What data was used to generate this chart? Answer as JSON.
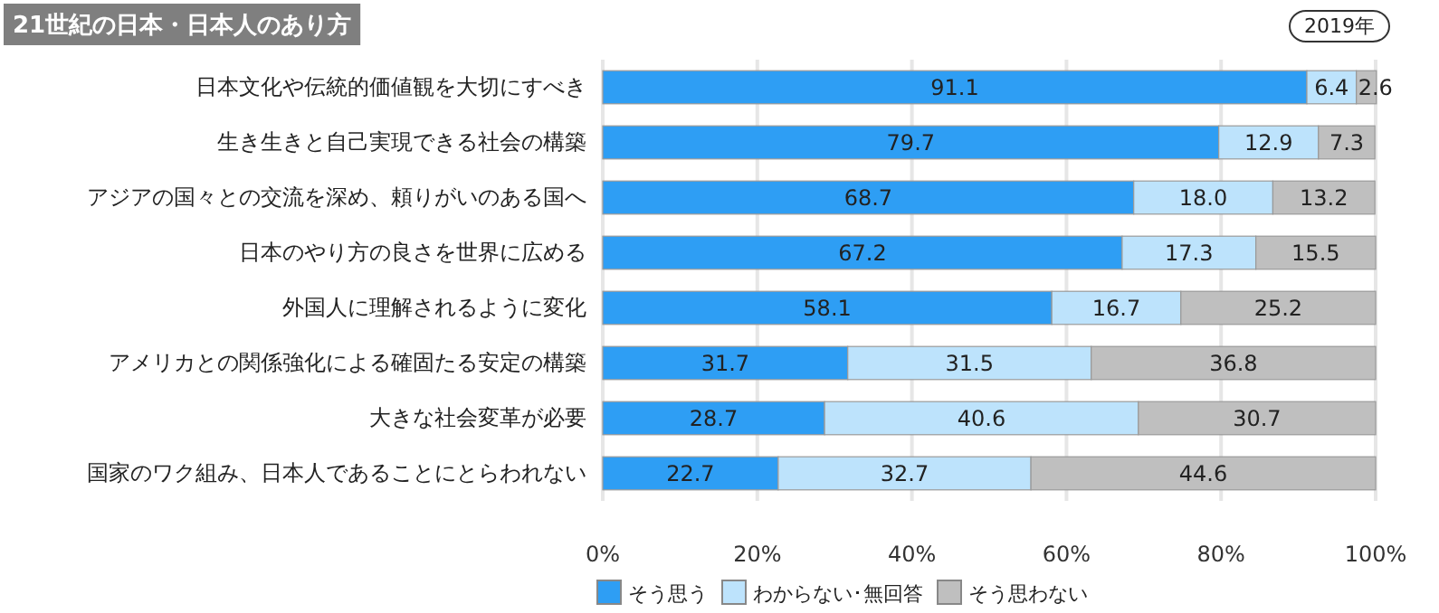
{
  "chart_data": {
    "type": "bar",
    "orientation": "horizontal",
    "stacked": true,
    "title": "21世紀の日本・日本人のあり方",
    "annotations": [
      "2019年"
    ],
    "categories": [
      "日本文化や伝統的価値観を大切にすべき",
      "生き生きと自己実現できる社会の構築",
      "アジアの国々との交流を深め、頼りがいのある国へ",
      "日本のやり方の良さを世界に広める",
      "外国人に理解されるように変化",
      "アメリカとの関係強化による確固たる安定の構築",
      "大きな社会変革が必要",
      "国家のワク組み、日本人であることにとらわれない"
    ],
    "series": [
      {
        "name": "そう思う",
        "color": "#2e9ef4",
        "values": [
          91.1,
          79.7,
          68.7,
          67.2,
          58.1,
          31.7,
          28.7,
          22.7
        ],
        "value_labels": [
          "91.1",
          "79.7",
          "68.7",
          "67.2",
          "58.1",
          "31.7",
          "28.7",
          "22.7"
        ]
      },
      {
        "name": "わからない･無回答",
        "color": "#bde3fc",
        "values": [
          6.4,
          12.9,
          18.0,
          17.3,
          16.7,
          31.5,
          40.6,
          32.7
        ],
        "value_labels": [
          "6.4",
          "12.9",
          "18.0",
          "17.3",
          "16.7",
          "31.5",
          "40.6",
          "32.7"
        ]
      },
      {
        "name": "そう思わない",
        "color": "#bfbfbf",
        "values": [
          2.6,
          7.3,
          13.2,
          15.5,
          25.2,
          36.8,
          30.7,
          44.6
        ],
        "value_labels": [
          "2.6",
          "7.3",
          "13.2",
          "15.5",
          "25.2",
          "36.8",
          "30.7",
          "44.6"
        ]
      }
    ],
    "xlim": [
      0,
      100
    ],
    "xticks": [
      {
        "value": 0,
        "label": "0%"
      },
      {
        "value": 20,
        "label": "20%"
      },
      {
        "value": 40,
        "label": "40%"
      },
      {
        "value": 60,
        "label": "60%"
      },
      {
        "value": 80,
        "label": "80%"
      },
      {
        "value": 100,
        "label": "100%"
      }
    ],
    "grid": "x",
    "legend": "bottom"
  }
}
